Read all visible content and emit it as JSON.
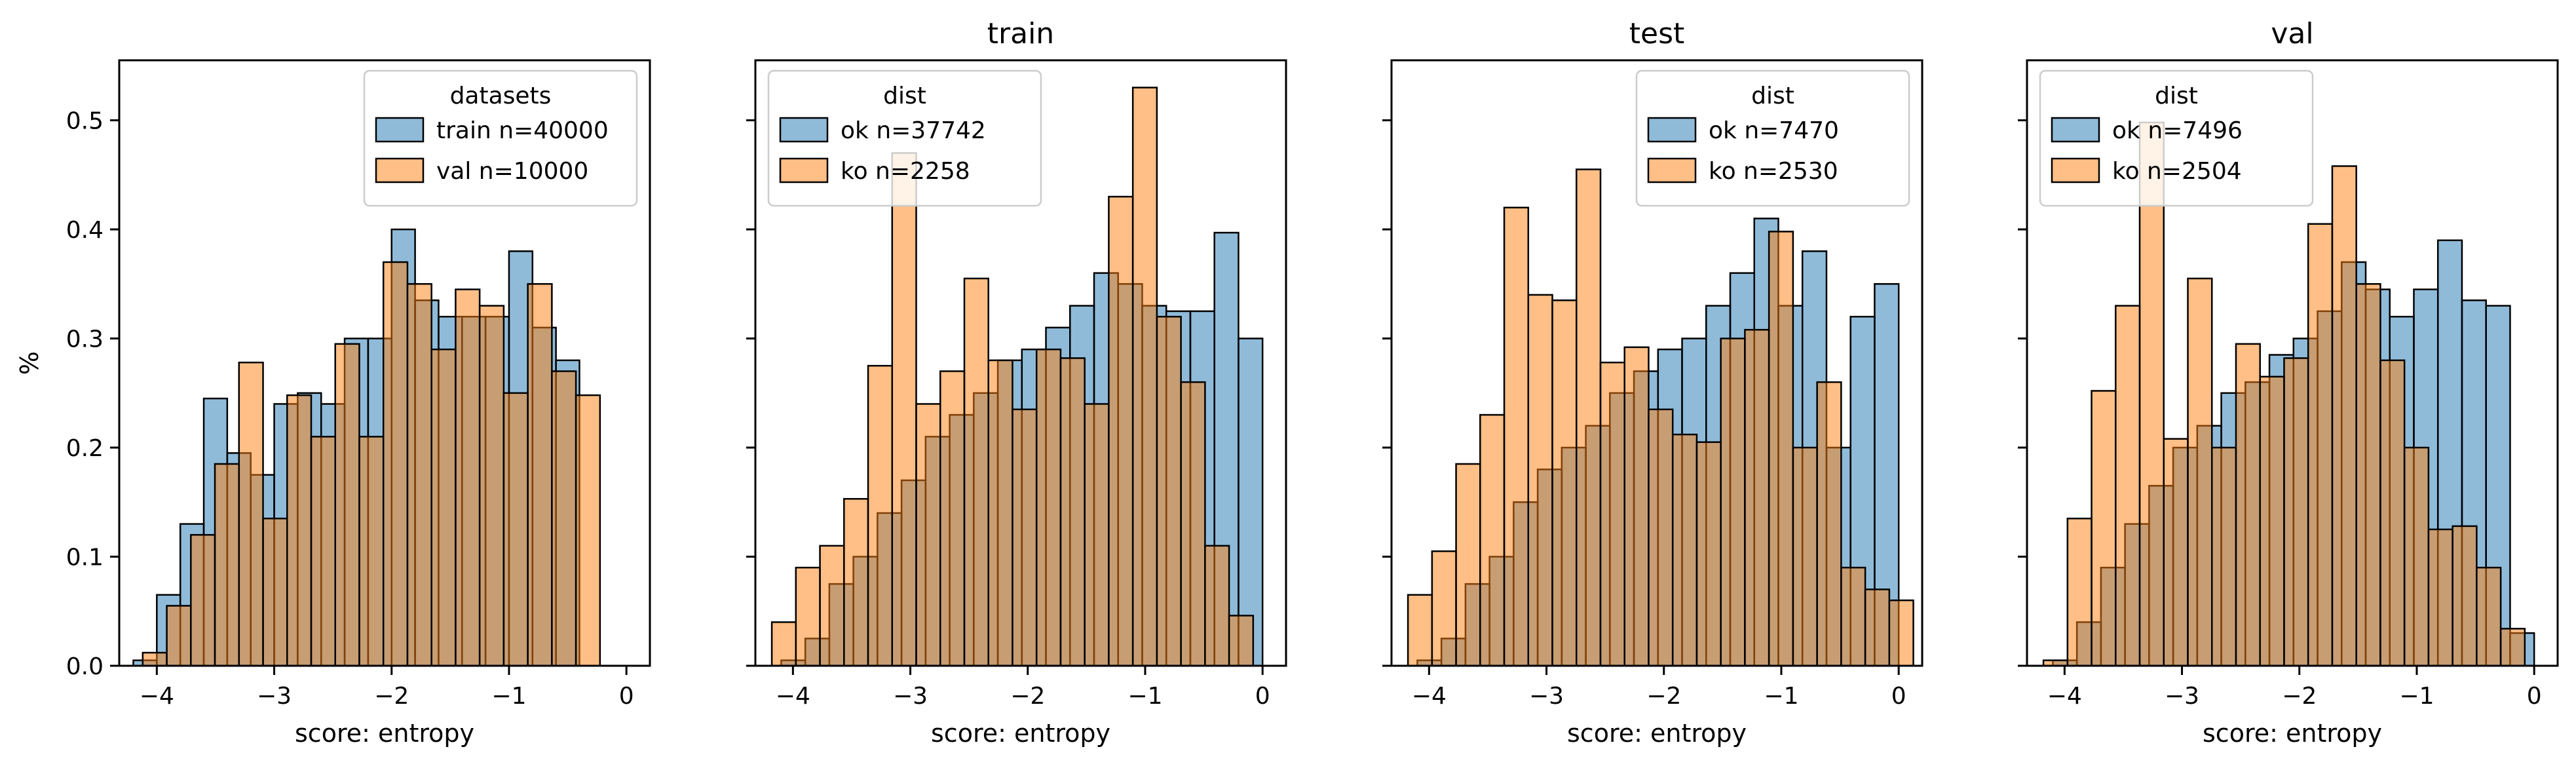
{
  "colors": {
    "blue": "#1f77b4",
    "orange": "#ff7f0e"
  },
  "chart_data": [
    {
      "type": "histogram",
      "title": "",
      "xlabel": "score: entropy",
      "ylabel": "%",
      "xlim": [
        -4.32,
        0.2
      ],
      "ylim": [
        0,
        0.555
      ],
      "xticks": [
        -4,
        -3,
        -2,
        -1,
        0
      ],
      "yticks": [
        0.0,
        0.1,
        0.2,
        0.3,
        0.4,
        0.5
      ],
      "legend": {
        "title": "datasets",
        "position": "top-right"
      },
      "series": [
        {
          "name": "train n=40000",
          "color": "blue",
          "bins_start": -4.2,
          "bin_width": 0.2,
          "values": [
            0.005,
            0.065,
            0.13,
            0.245,
            0.195,
            0.175,
            0.24,
            0.25,
            0.24,
            0.3,
            0.3,
            0.4,
            0.335,
            0.32,
            0.32,
            0.32,
            0.38,
            0.31,
            0.28
          ]
        },
        {
          "name": "val n=10000",
          "color": "orange",
          "bins_start": -4.12,
          "bin_width": 0.205,
          "values": [
            0.012,
            0.055,
            0.12,
            0.185,
            0.278,
            0.135,
            0.248,
            0.21,
            0.295,
            0.21,
            0.37,
            0.35,
            0.29,
            0.345,
            0.33,
            0.25,
            0.35,
            0.27,
            0.248
          ]
        }
      ]
    },
    {
      "type": "histogram",
      "title": "train",
      "xlabel": "score: entropy",
      "xlim": [
        -4.32,
        0.2
      ],
      "ylim": [
        0,
        0.555
      ],
      "xticks": [
        -4,
        -3,
        -2,
        -1,
        0
      ],
      "legend": {
        "title": "dist",
        "position": "top-left"
      },
      "series": [
        {
          "name": "ok n=37742",
          "color": "blue",
          "bins_start": -4.1,
          "bin_width": 0.205,
          "values": [
            0.005,
            0.025,
            0.075,
            0.1,
            0.14,
            0.17,
            0.21,
            0.23,
            0.25,
            0.28,
            0.29,
            0.31,
            0.33,
            0.36,
            0.35,
            0.33,
            0.325,
            0.325,
            0.397,
            0.3
          ]
        },
        {
          "name": "ko n=2258",
          "color": "orange",
          "bins_start": -4.18,
          "bin_width": 0.205,
          "values": [
            0.04,
            0.09,
            0.11,
            0.153,
            0.275,
            0.47,
            0.24,
            0.27,
            0.355,
            0.28,
            0.235,
            0.29,
            0.282,
            0.24,
            0.43,
            0.53,
            0.32,
            0.26,
            0.11,
            0.046
          ]
        }
      ]
    },
    {
      "type": "histogram",
      "title": "test",
      "xlabel": "score: entropy",
      "xlim": [
        -4.32,
        0.2
      ],
      "ylim": [
        0,
        0.555
      ],
      "xticks": [
        -4,
        -3,
        -2,
        -1,
        0
      ],
      "legend": {
        "title": "dist",
        "position": "top-right"
      },
      "series": [
        {
          "name": "ok n=7470",
          "color": "blue",
          "bins_start": -4.1,
          "bin_width": 0.205,
          "values": [
            0.005,
            0.025,
            0.075,
            0.1,
            0.15,
            0.18,
            0.2,
            0.22,
            0.25,
            0.27,
            0.29,
            0.3,
            0.33,
            0.36,
            0.41,
            0.33,
            0.38,
            0.2,
            0.32,
            0.35
          ]
        },
        {
          "name": "ko n=2530",
          "color": "orange",
          "bins_start": -4.18,
          "bin_width": 0.205,
          "values": [
            0.065,
            0.105,
            0.185,
            0.23,
            0.42,
            0.34,
            0.335,
            0.455,
            0.278,
            0.292,
            0.235,
            0.212,
            0.205,
            0.3,
            0.308,
            0.398,
            0.2,
            0.26,
            0.09,
            0.07,
            0.06
          ]
        }
      ]
    },
    {
      "type": "histogram",
      "title": "val",
      "xlabel": "score: entropy",
      "xlim": [
        -4.32,
        0.2
      ],
      "ylim": [
        0,
        0.555
      ],
      "xticks": [
        -4,
        -3,
        -2,
        -1,
        0
      ],
      "legend": {
        "title": "dist",
        "position": "top-left"
      },
      "series": [
        {
          "name": "ok n=7496",
          "color": "blue",
          "bins_start": -4.1,
          "bin_width": 0.205,
          "values": [
            0.005,
            0.04,
            0.09,
            0.13,
            0.165,
            0.2,
            0.22,
            0.25,
            0.26,
            0.285,
            0.3,
            0.325,
            0.37,
            0.345,
            0.32,
            0.345,
            0.39,
            0.335,
            0.33,
            0.03
          ]
        },
        {
          "name": "ko n=2504",
          "color": "orange",
          "bins_start": -4.18,
          "bin_width": 0.205,
          "values": [
            0.005,
            0.135,
            0.252,
            0.33,
            0.498,
            0.208,
            0.355,
            0.2,
            0.295,
            0.265,
            0.282,
            0.405,
            0.458,
            0.35,
            0.28,
            0.2,
            0.125,
            0.128,
            0.09,
            0.034
          ]
        }
      ]
    }
  ]
}
